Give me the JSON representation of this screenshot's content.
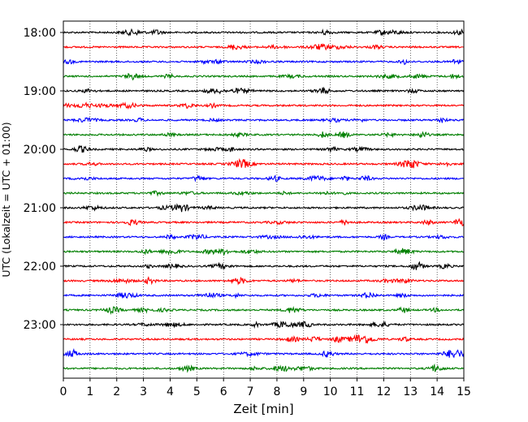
{
  "chart_data": {
    "type": "line",
    "title": "",
    "xlabel": "Zeit  [min]",
    "ylabel": "UTC (Lokalzeit = UTC + 01:00)",
    "xlim": [
      0,
      15
    ],
    "x_ticks": [
      "0",
      "1",
      "2",
      "3",
      "4",
      "5",
      "6",
      "7",
      "8",
      "9",
      "10",
      "11",
      "12",
      "13",
      "14",
      "15"
    ],
    "y_ticks": [
      "18:00",
      "19:00",
      "20:00",
      "21:00",
      "22:00",
      "23:00"
    ],
    "grid": "vertical dotted lines at each minute",
    "legend": "none",
    "trace_interval_min": 15,
    "start_time": "18:00",
    "trace_colors_cycle": [
      "#000000",
      "#ff0000",
      "#0000ff",
      "#007f00"
    ],
    "series": [
      {
        "start": "18:00",
        "color": "#000000"
      },
      {
        "start": "18:15",
        "color": "#ff0000"
      },
      {
        "start": "18:30",
        "color": "#0000ff"
      },
      {
        "start": "18:45",
        "color": "#007f00"
      },
      {
        "start": "19:00",
        "color": "#000000"
      },
      {
        "start": "19:15",
        "color": "#ff0000"
      },
      {
        "start": "19:30",
        "color": "#0000ff"
      },
      {
        "start": "19:45",
        "color": "#007f00"
      },
      {
        "start": "20:00",
        "color": "#000000"
      },
      {
        "start": "20:15",
        "color": "#ff0000"
      },
      {
        "start": "20:30",
        "color": "#0000ff"
      },
      {
        "start": "20:45",
        "color": "#007f00"
      },
      {
        "start": "21:00",
        "color": "#000000"
      },
      {
        "start": "21:15",
        "color": "#ff0000"
      },
      {
        "start": "21:30",
        "color": "#0000ff"
      },
      {
        "start": "21:45",
        "color": "#007f00"
      },
      {
        "start": "22:00",
        "color": "#000000"
      },
      {
        "start": "22:15",
        "color": "#ff0000"
      },
      {
        "start": "22:30",
        "color": "#0000ff"
      },
      {
        "start": "22:45",
        "color": "#007f00"
      },
      {
        "start": "23:00",
        "color": "#000000"
      },
      {
        "start": "23:15",
        "color": "#ff0000"
      },
      {
        "start": "23:30",
        "color": "#0000ff"
      },
      {
        "start": "23:45",
        "color": "#007f00"
      }
    ]
  }
}
